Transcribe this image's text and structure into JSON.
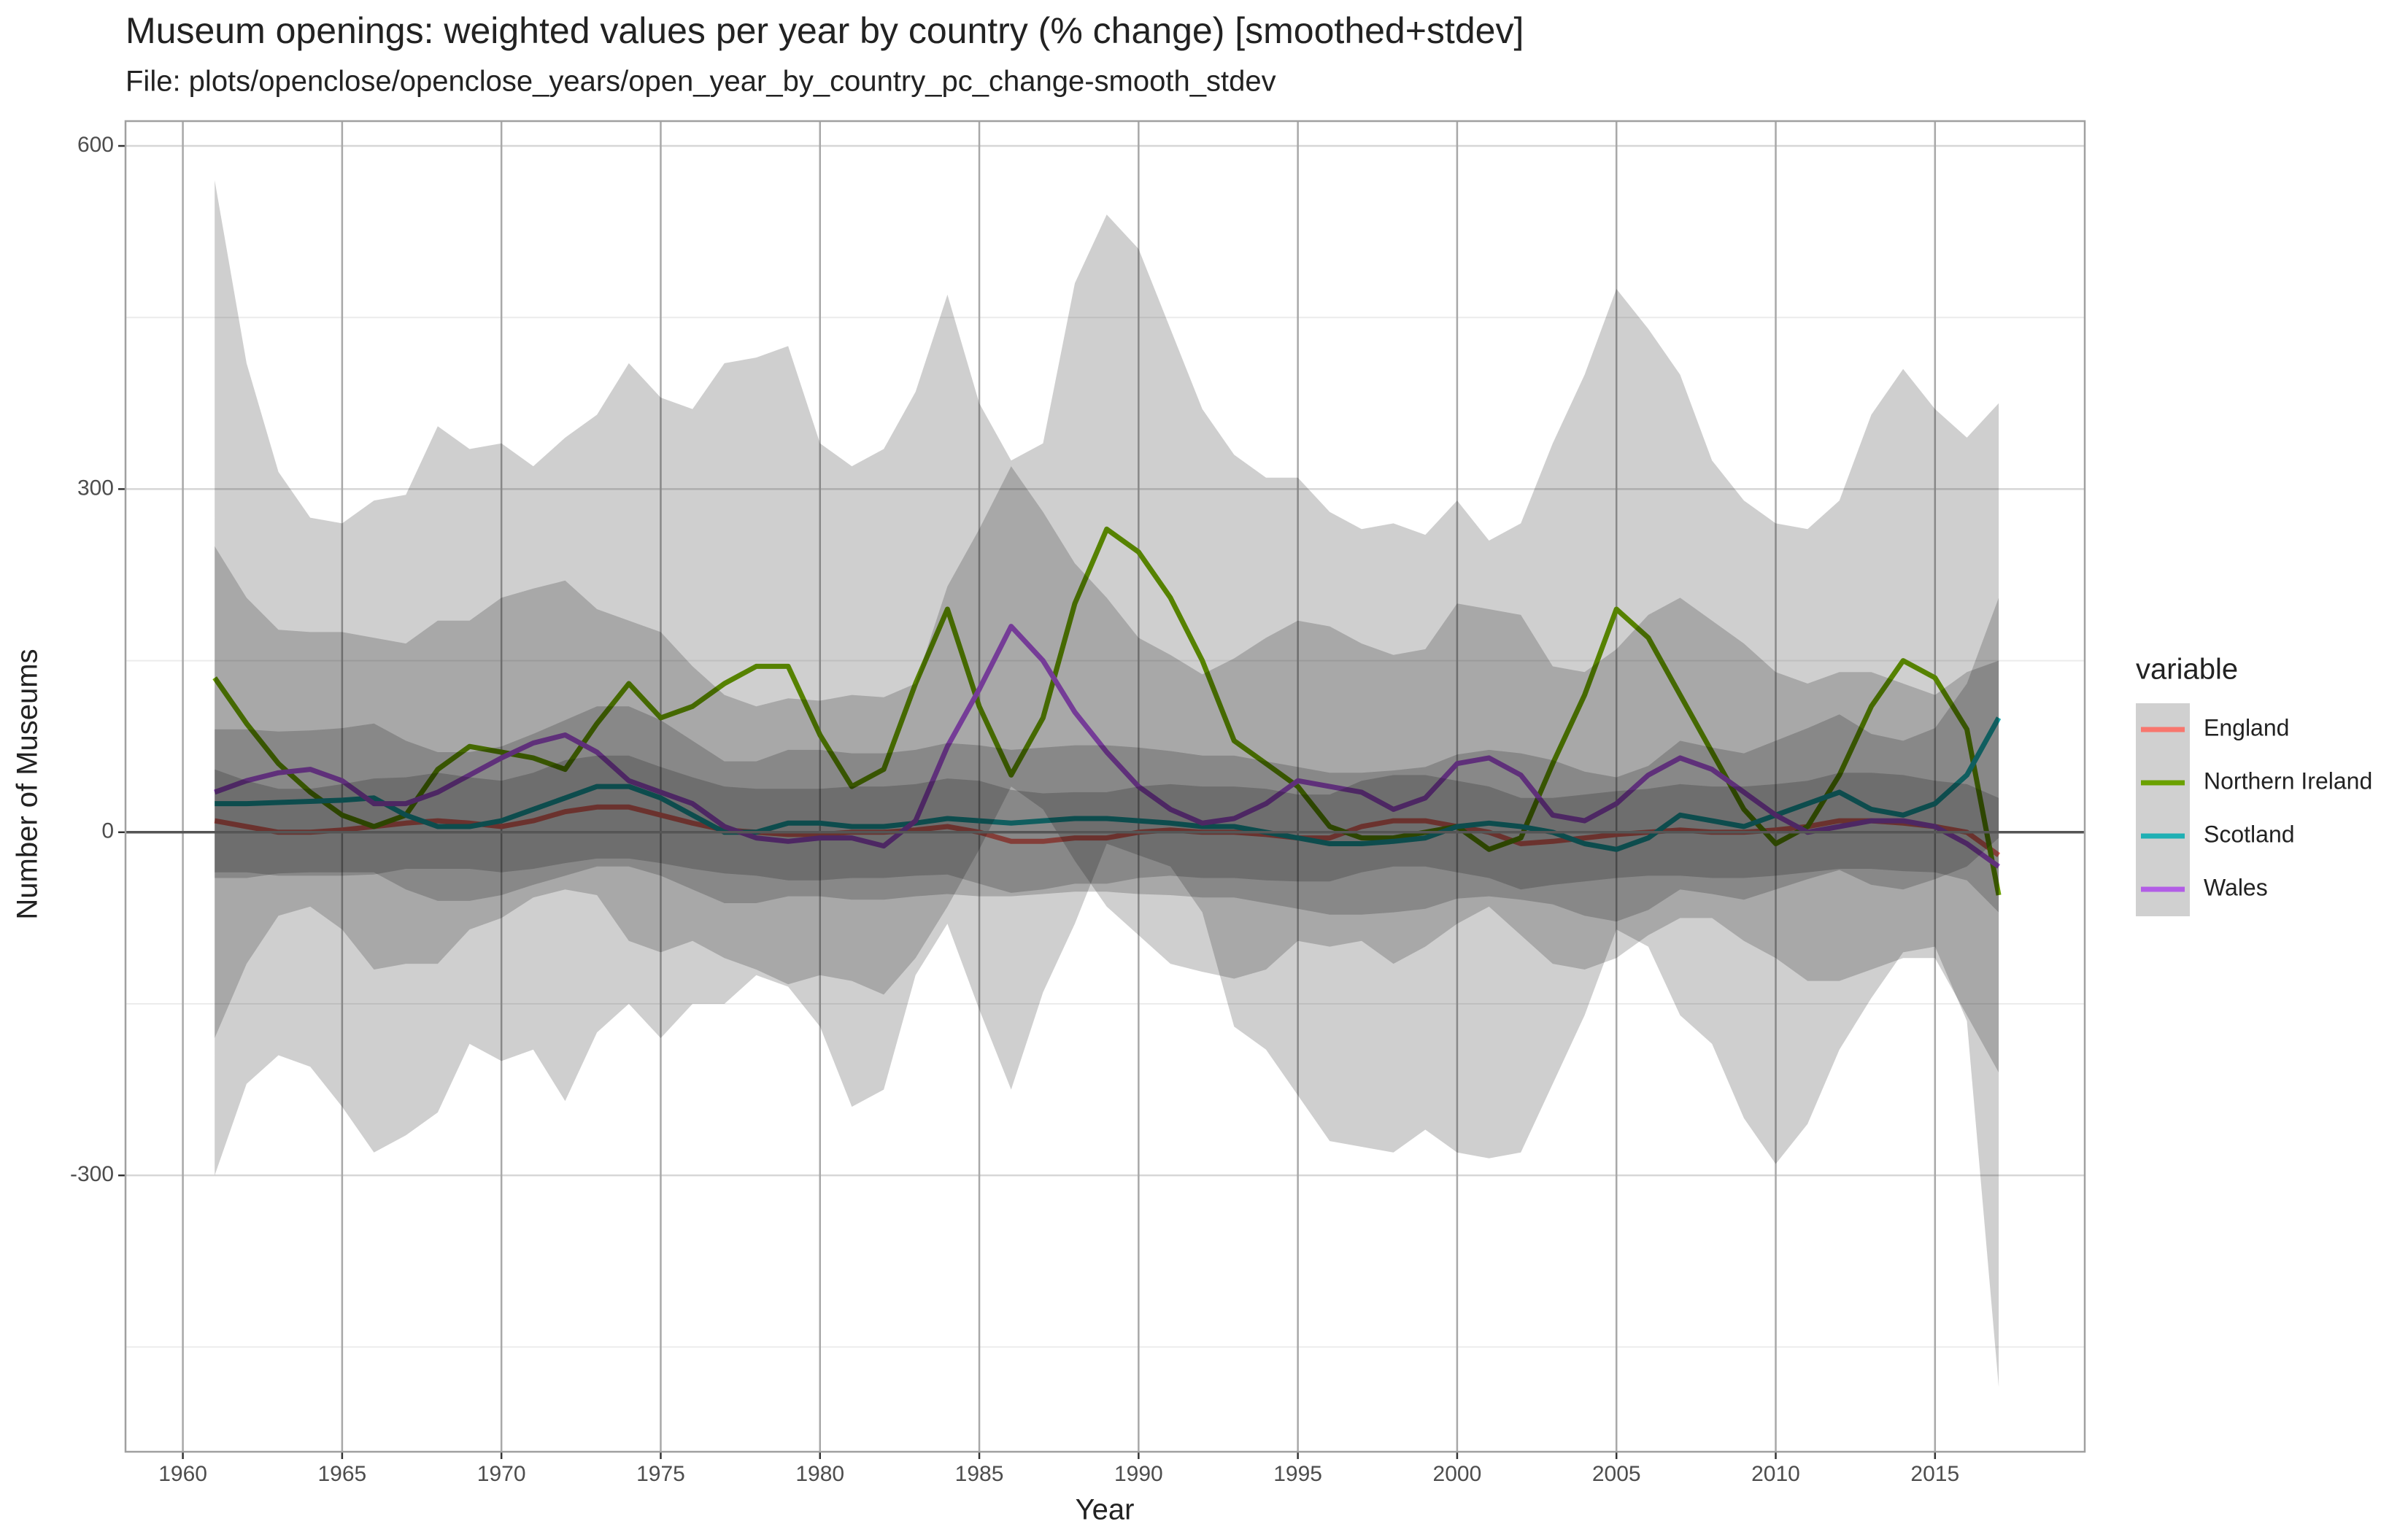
{
  "chart_data": {
    "type": "line",
    "title": "Museum openings: weighted values per year by country (% change) [smoothed+stdev]",
    "subtitle": "File: plots/openclose/openclose_years/open_year_by_country_pc_change-smooth_stdev",
    "x_label": "Year",
    "y_label": "Number of Museums",
    "legend_title": "variable",
    "x": [
      1961,
      1962,
      1963,
      1964,
      1965,
      1966,
      1967,
      1968,
      1969,
      1970,
      1971,
      1972,
      1973,
      1974,
      1975,
      1976,
      1977,
      1978,
      1979,
      1980,
      1981,
      1982,
      1983,
      1984,
      1985,
      1986,
      1987,
      1988,
      1989,
      1990,
      1991,
      1992,
      1993,
      1994,
      1995,
      1996,
      1997,
      1998,
      1999,
      2000,
      2001,
      2002,
      2003,
      2004,
      2005,
      2006,
      2007,
      2008,
      2009,
      2010,
      2011,
      2012,
      2013,
      2014,
      2015,
      2016,
      2017
    ],
    "xlim": [
      1958.2,
      2019.7
    ],
    "xticks": [
      1960,
      1965,
      1970,
      1975,
      1980,
      1985,
      1990,
      1995,
      2000,
      2005,
      2010,
      2015
    ],
    "ylim": [
      -541.6,
      621.7
    ],
    "yticks": [
      -300,
      0,
      300,
      600
    ],
    "y_minor_grid": [
      -450,
      -150,
      150,
      450
    ],
    "hline": 0,
    "grid": true,
    "series": [
      {
        "name": "England",
        "color": "#F8766D",
        "values": [
          10,
          5,
          0,
          0,
          2,
          5,
          8,
          10,
          8,
          5,
          10,
          18,
          22,
          22,
          15,
          8,
          2,
          0,
          -2,
          -2,
          0,
          0,
          2,
          5,
          0,
          -8,
          -8,
          -5,
          -5,
          0,
          2,
          0,
          0,
          -2,
          -5,
          -5,
          5,
          10,
          10,
          5,
          0,
          -10,
          -8,
          -5,
          -2,
          0,
          2,
          0,
          0,
          2,
          5,
          10,
          10,
          8,
          5,
          0,
          -20
        ],
        "sd": [
          45,
          40,
          38,
          38,
          40,
          42,
          40,
          42,
          40,
          40,
          42,
          45,
          45,
          45,
          42,
          40,
          38,
          38,
          40,
          40,
          40,
          40,
          40,
          42,
          45,
          45,
          42,
          40,
          40,
          40,
          40,
          40,
          40,
          40,
          38,
          38,
          40,
          40,
          40,
          40,
          40,
          40,
          38,
          38,
          38,
          38,
          40,
          40,
          40,
          40,
          40,
          42,
          42,
          42,
          40,
          42,
          50
        ]
      },
      {
        "name": "Northern Ireland",
        "color": "#6BA100",
        "values": [
          135,
          95,
          60,
          35,
          15,
          5,
          15,
          55,
          75,
          70,
          65,
          55,
          95,
          130,
          100,
          110,
          130,
          145,
          145,
          85,
          40,
          55,
          130,
          195,
          110,
          50,
          100,
          200,
          265,
          245,
          205,
          150,
          80,
          60,
          40,
          5,
          -5,
          -5,
          0,
          5,
          -15,
          -5,
          60,
          120,
          195,
          170,
          120,
          70,
          20,
          -10,
          5,
          50,
          110,
          150,
          135,
          90,
          -55
        ],
        "sd": [
          435,
          315,
          255,
          240,
          255,
          285,
          280,
          300,
          260,
          270,
          255,
          290,
          270,
          280,
          280,
          260,
          280,
          270,
          280,
          255,
          280,
          280,
          255,
          275,
          265,
          275,
          240,
          280,
          275,
          265,
          235,
          220,
          250,
          250,
          270,
          275,
          270,
          275,
          260,
          285,
          270,
          275,
          280,
          280,
          280,
          270,
          280,
          255,
          270,
          280,
          260,
          240,
          255,
          255,
          235,
          255,
          430
        ]
      },
      {
        "name": "Scotland",
        "color": "#1FB0B4",
        "values": [
          25,
          25,
          26,
          27,
          28,
          30,
          15,
          5,
          5,
          10,
          20,
          30,
          40,
          40,
          30,
          15,
          0,
          0,
          8,
          8,
          5,
          5,
          8,
          12,
          10,
          8,
          10,
          12,
          12,
          10,
          8,
          5,
          5,
          0,
          -5,
          -10,
          -10,
          -8,
          -5,
          5,
          8,
          5,
          0,
          -10,
          -15,
          -5,
          15,
          10,
          5,
          15,
          25,
          35,
          20,
          15,
          25,
          50,
          100
        ],
        "sd": [
          65,
          65,
          62,
          62,
          63,
          65,
          65,
          65,
          65,
          65,
          66,
          68,
          70,
          70,
          68,
          65,
          62,
          62,
          64,
          64,
          64,
          64,
          64,
          66,
          66,
          64,
          64,
          64,
          64,
          64,
          63,
          62,
          62,
          62,
          62,
          62,
          62,
          62,
          62,
          63,
          64,
          64,
          63,
          63,
          63,
          63,
          65,
          64,
          64,
          65,
          66,
          68,
          66,
          65,
          66,
          80,
          105
        ]
      },
      {
        "name": "Wales",
        "color": "#B25DE6",
        "values": [
          35,
          45,
          52,
          55,
          45,
          25,
          25,
          35,
          50,
          65,
          78,
          85,
          70,
          45,
          35,
          25,
          5,
          -5,
          -8,
          -5,
          -5,
          -12,
          10,
          75,
          125,
          180,
          150,
          105,
          70,
          40,
          20,
          8,
          12,
          25,
          45,
          40,
          35,
          20,
          30,
          60,
          65,
          50,
          15,
          10,
          25,
          50,
          65,
          55,
          35,
          15,
          0,
          5,
          10,
          10,
          5,
          -10,
          -30
        ],
        "sd": [
          215,
          160,
          125,
          120,
          130,
          145,
          140,
          150,
          135,
          140,
          135,
          135,
          125,
          140,
          140,
          120,
          115,
          115,
          125,
          120,
          125,
          130,
          120,
          140,
          140,
          140,
          130,
          130,
          135,
          130,
          135,
          130,
          140,
          145,
          140,
          140,
          130,
          135,
          130,
          140,
          130,
          140,
          130,
          130,
          135,
          140,
          140,
          130,
          130,
          125,
          130,
          135,
          130,
          120,
          115,
          150,
          180
        ]
      }
    ]
  }
}
